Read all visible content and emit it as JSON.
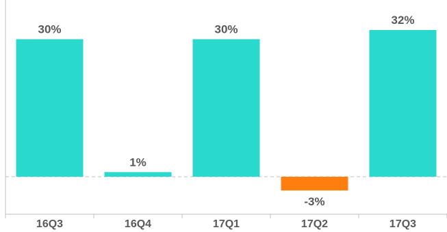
{
  "chart_data": {
    "type": "bar",
    "categories": [
      "16Q3",
      "16Q4",
      "17Q1",
      "17Q2",
      "17Q3"
    ],
    "values": [
      30,
      1,
      30,
      -3,
      32
    ],
    "value_labels": [
      "30%",
      "1%",
      "30%",
      "-3%",
      "32%"
    ],
    "title": "",
    "xlabel": "",
    "ylabel": "",
    "ylim": [
      -3.5,
      32
    ],
    "grid": false,
    "legend": "none",
    "colors": {
      "positive": "#2ad9cd",
      "negative": "#ff7f0e",
      "axis": "#bfbfbf",
      "text": "#595959"
    }
  }
}
